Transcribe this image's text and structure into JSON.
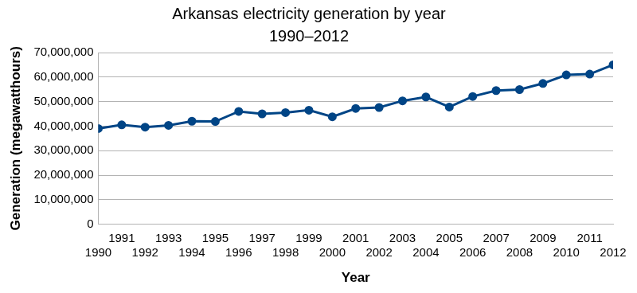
{
  "chart_data": {
    "type": "line",
    "title": "Arkansas electricity generation by year",
    "subtitle": "1990–2012",
    "x_label": "Year",
    "y_label": "Generation (megawatthours)",
    "categories": [
      "1990",
      "1991",
      "1992",
      "1993",
      "1994",
      "1995",
      "1996",
      "1997",
      "1998",
      "1999",
      "2000",
      "2001",
      "2002",
      "2003",
      "2004",
      "2005",
      "2006",
      "2007",
      "2008",
      "2009",
      "2010",
      "2011",
      "2012"
    ],
    "values": [
      39000000,
      40500000,
      39600000,
      40300000,
      42000000,
      41900000,
      46000000,
      45000000,
      45500000,
      46500000,
      43800000,
      47200000,
      47600000,
      50300000,
      51900000,
      47800000,
      52100000,
      54500000,
      54900000,
      57400000,
      60900000,
      61200000,
      65000000
    ],
    "color": "#004586",
    "marker": "circle",
    "line_style": "solid",
    "ylim": [
      0,
      70000000
    ],
    "yticks": [
      0,
      {
        "value": 10000000,
        "label": "10,000,000"
      },
      {
        "value": 20000000,
        "label": "20,000,000"
      },
      {
        "value": 30000000,
        "label": "30,000,000"
      },
      {
        "value": 40000000,
        "label": "40,000,000"
      },
      {
        "value": 50000000,
        "label": "50,000,000"
      },
      {
        "value": 60000000,
        "label": "60,000,000"
      },
      {
        "value": 70000000,
        "label": "70,000,000"
      }
    ],
    "grid": true
  }
}
